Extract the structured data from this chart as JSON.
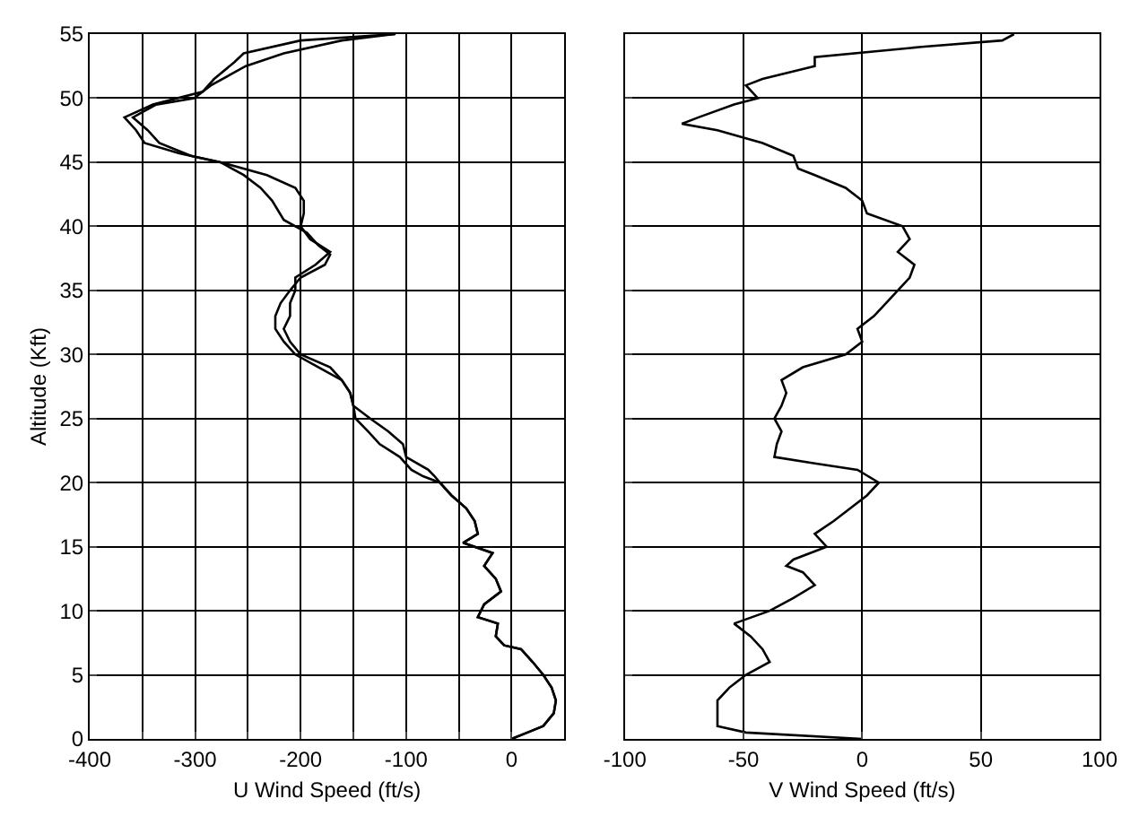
{
  "chart_data": [
    {
      "type": "line",
      "xlabel": "U Wind Speed (ft/s)",
      "ylabel": "Altitude (Kft)",
      "xlim": [
        -400,
        50
      ],
      "ylim": [
        0,
        55
      ],
      "grid": true,
      "xticks": [
        -400,
        {
          "value": -350,
          "label": null
        },
        -300,
        {
          "value": -250,
          "label": null
        },
        -200,
        {
          "value": -150,
          "label": null
        },
        -100,
        {
          "value": -50,
          "label": null
        },
        0
      ],
      "yticks": [
        0,
        5,
        10,
        15,
        20,
        25,
        30,
        35,
        40,
        45,
        50,
        55
      ],
      "series": [
        {
          "color": "#000000",
          "x": [
            0,
            15,
            30,
            40,
            42,
            38,
            30,
            20,
            9,
            -7,
            -15,
            -13,
            -32,
            -26,
            -10,
            -15,
            -26,
            -18,
            -46,
            -32,
            -35,
            -43,
            -57,
            -68,
            -84,
            -95,
            -106,
            -125,
            -136,
            -148,
            -150,
            -153,
            -161,
            -183,
            -205,
            -216,
            -224,
            -224,
            -219,
            -210,
            -200,
            -177,
            -172,
            -183,
            -194,
            -216,
            -227,
            -238,
            -254,
            -276,
            -315,
            -348,
            -356,
            -367,
            -340,
            -293,
            -282,
            -263,
            -254,
            -200,
            -110
          ],
          "values": [
            0,
            0.5,
            1,
            2,
            3,
            4,
            5,
            6,
            7,
            7.3,
            8,
            9,
            9.5,
            10.5,
            11.5,
            12.5,
            13.5,
            14.5,
            15.3,
            16,
            17,
            18,
            19,
            20,
            20.5,
            21,
            22,
            23,
            24,
            25,
            26,
            27,
            28,
            29,
            30,
            31,
            32,
            33,
            34,
            35,
            36,
            37,
            37.8,
            38.5,
            39.5,
            40.5,
            42,
            43,
            44,
            45,
            45.7,
            46.5,
            47.5,
            48.5,
            49.5,
            50.5,
            51.5,
            52.8,
            53.5,
            54.5,
            55
          ]
        },
        {
          "color": "#000000",
          "x": [
            0,
            15,
            30,
            40,
            42,
            38,
            30,
            20,
            9,
            -7,
            -15,
            -13,
            -32,
            -26,
            -10,
            -15,
            -26,
            -18,
            -46,
            -32,
            -35,
            -43,
            -57,
            -68,
            -73,
            -79,
            -100,
            -103,
            -117,
            -134,
            -150,
            -153,
            -161,
            -172,
            -200,
            -210,
            -216,
            -210,
            -210,
            -205,
            -205,
            -186,
            -172,
            -191,
            -200,
            -197,
            -197,
            -205,
            -232,
            -276,
            -304,
            -334,
            -345,
            -359,
            -337,
            -301,
            -285,
            -252,
            -216,
            -161,
            -111
          ],
          "values": [
            0,
            0.5,
            1,
            2,
            3,
            4,
            5,
            6,
            7,
            7.3,
            8,
            9,
            9.5,
            10.5,
            11.5,
            12.5,
            13.5,
            14.5,
            15.3,
            16,
            17,
            18,
            19,
            20,
            20.5,
            21,
            22,
            23,
            24,
            25,
            26,
            27,
            28,
            29,
            30,
            31,
            32,
            33,
            34,
            35,
            36,
            37,
            38,
            39,
            40,
            41,
            42,
            43,
            44,
            45,
            45.5,
            46.5,
            47.5,
            48.5,
            49.5,
            50,
            51,
            52.5,
            53.5,
            54.5,
            55
          ]
        }
      ]
    },
    {
      "type": "line",
      "xlabel": "V Wind Speed (ft/s)",
      "xlim": [
        -100,
        100
      ],
      "ylim": [
        0,
        55
      ],
      "grid": true,
      "tick_labels": "x",
      "xticks": [
        -100,
        -50,
        0,
        50,
        100
      ],
      "yticks": [
        {
          "value": 0,
          "label": null
        },
        {
          "value": 5,
          "label": null
        },
        {
          "value": 10,
          "label": null
        },
        {
          "value": 15,
          "label": null
        },
        {
          "value": 20,
          "label": null
        },
        {
          "value": 25,
          "label": null
        },
        {
          "value": 30,
          "label": null
        },
        {
          "value": 35,
          "label": null
        },
        {
          "value": 40,
          "label": null
        },
        {
          "value": 45,
          "label": null
        },
        {
          "value": 50,
          "label": null
        },
        {
          "value": 55,
          "label": null
        }
      ],
      "series": [
        {
          "color": "#000000",
          "x": [
            0,
            -49,
            -61,
            -61,
            -61,
            -56,
            -49,
            -39,
            -42,
            -47,
            -54,
            -39,
            -29,
            -20,
            -25,
            -32,
            -29,
            -15,
            -20,
            -12,
            -5,
            2,
            7,
            -2,
            -20,
            -37,
            -36,
            -34,
            -37,
            -34,
            -32,
            -34,
            -25,
            -7,
            0,
            -2,
            5,
            10,
            15,
            20,
            22,
            15,
            20,
            17,
            2,
            0,
            -7,
            -20,
            -27,
            -29,
            -42,
            -61,
            -76,
            -69,
            -54,
            -44,
            -49,
            -42,
            -20,
            -20,
            25,
            59,
            64
          ],
          "values": [
            0,
            0.5,
            1,
            2,
            3,
            4,
            5,
            6,
            7,
            8,
            9,
            10,
            11,
            12,
            13,
            13.5,
            14,
            15,
            16,
            17,
            18,
            19,
            20,
            21,
            21.5,
            22,
            23,
            24,
            25,
            26,
            27,
            28,
            29,
            30,
            31,
            32,
            33,
            34,
            35,
            36,
            37,
            38,
            39,
            40,
            41,
            42,
            43,
            44,
            44.5,
            45.5,
            46.5,
            47.5,
            48,
            48.5,
            49.5,
            50,
            51,
            51.5,
            52.5,
            53.2,
            54,
            54.5,
            55
          ]
        }
      ]
    }
  ]
}
